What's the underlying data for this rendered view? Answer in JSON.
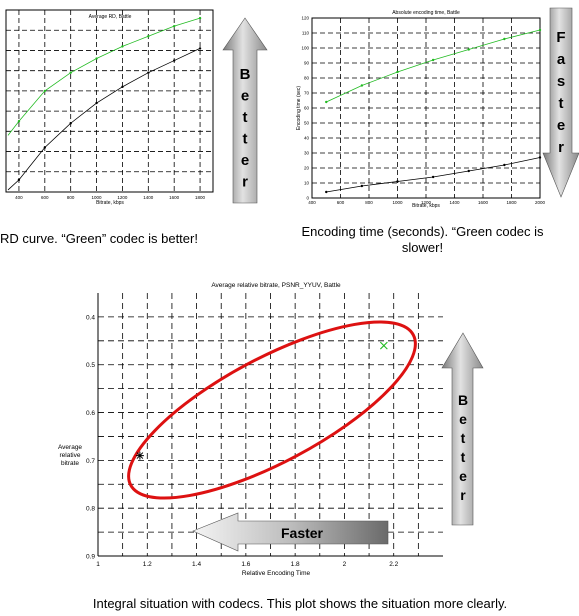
{
  "charts": {
    "rd": {
      "title": "Average RD, Battle",
      "xlabel": "Bitrate, kbps",
      "xticks": [
        "400",
        "600",
        "800",
        "1000",
        "1200",
        "1400",
        "1600",
        "1800"
      ]
    },
    "enc": {
      "title": "Absolute encoding time, Battle",
      "xlabel": "Bitrate, kbps",
      "ylabel": "Encoding time (sec)",
      "xticks": [
        "400",
        "600",
        "800",
        "1000",
        "1200",
        "1400",
        "1600",
        "1800",
        "2000"
      ],
      "yticks": [
        "120",
        "110",
        "100",
        "90",
        "80",
        "70",
        "60",
        "50",
        "40",
        "30",
        "20",
        "10",
        "0"
      ]
    },
    "rel": {
      "title": "Average relative bitrate, PSNR_YYUV, Battle",
      "xlabel": "Relative Encoding Time",
      "ylabel": "Average relative bitrate",
      "xticks": [
        "1",
        "1.2",
        "1.4",
        "1.6",
        "1.8",
        "2",
        "2.2"
      ],
      "yticks": [
        "0.4",
        "0.5",
        "0.6",
        "0.7",
        "0.8",
        "0.9"
      ]
    }
  },
  "chart_data": [
    {
      "type": "line",
      "title": "Average RD, Battle",
      "xlabel": "Bitrate, kbps",
      "x": [
        400,
        600,
        800,
        1000,
        1200,
        1400,
        1600,
        1800
      ],
      "series": [
        {
          "values": [
            33.5,
            35.0,
            35.9,
            36.6,
            37.2,
            37.7,
            38.2,
            38.6
          ]
        },
        {
          "values": [
            30.6,
            32.2,
            33.4,
            34.4,
            35.2,
            35.9,
            36.5,
            37.1
          ]
        }
      ]
    },
    {
      "type": "line",
      "title": "Absolute encoding time, Battle",
      "xlabel": "Bitrate, kbps",
      "ylabel": "Encoding time (sec)",
      "x": [
        500,
        750,
        1000,
        1250,
        1500,
        1750,
        2000
      ],
      "ylim": [
        0,
        120
      ],
      "series": [
        {
          "values": [
            64,
            75,
            84,
            92,
            99,
            106,
            112
          ]
        },
        {
          "values": [
            4,
            8,
            11,
            14,
            18,
            22,
            27
          ]
        }
      ]
    },
    {
      "type": "scatter",
      "title": "Average relative bitrate, PSNR_YYUV, Battle",
      "xlabel": "Relative Encoding Time",
      "ylabel": "Average relative bitrate",
      "xlim": [
        1,
        2.4
      ],
      "ylim": [
        0.35,
        0.9
      ],
      "points": [
        {
          "x": 2.16,
          "y": 0.46,
          "color": "#22bb22",
          "marker": "x"
        },
        {
          "x": 1.17,
          "y": 0.69,
          "color": "#000000",
          "marker": "star"
        }
      ]
    }
  ],
  "arrows": {
    "better_top": "Better",
    "faster_top": "Faster",
    "better_bottom": "Better",
    "faster_bottom": "Faster"
  },
  "captions": {
    "rd": "RD curve. “Green” codec is better!",
    "enc_line1": "Encoding time (seconds). “Green codec is",
    "enc_line2": "slower!",
    "bottom": "Integral situation with codecs. This plot shows the situation more clearly."
  },
  "colors": {
    "green": "#22bb22",
    "ellipse": "#dd1111",
    "arrow_dark": "#6a6a6a",
    "arrow_light": "#e8e8e8"
  }
}
